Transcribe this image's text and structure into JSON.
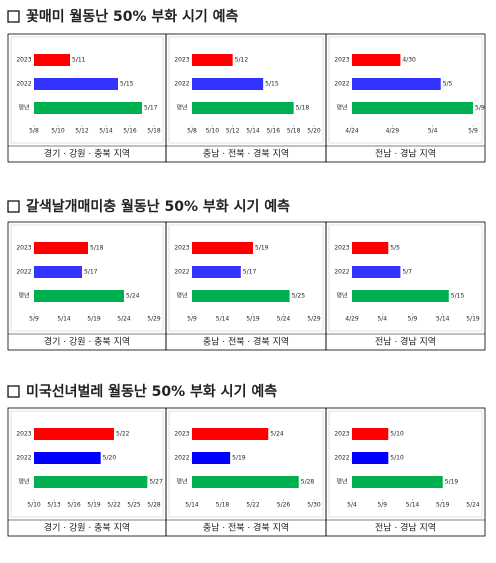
{
  "section_titles": [
    "꽃매미 월동난 50% 부화 시기 예측",
    "갈색날개매미충 월동난 50% 부화 시기 예측",
    "미국선녀벌레 월동난 50% 부화 시기 예측"
  ],
  "chart_data": [
    {
      "type": "barh",
      "xlabel": "경기 · 강원 · 충북 지역",
      "categories": [
        "2023",
        "2022",
        "평년"
      ],
      "values": [
        "5/11",
        "5/15",
        "5/17"
      ],
      "colors": [
        "#ff0000",
        "#3333ff",
        "#00b050"
      ],
      "xlim": [
        "5/8",
        "5/18"
      ],
      "xticks": [
        "5/8",
        "5/10",
        "5/12",
        "5/14",
        "5/16",
        "5/18"
      ]
    },
    {
      "type": "barh",
      "xlabel": "충남 · 전북 · 경북 지역",
      "categories": [
        "2023",
        "2022",
        "평년"
      ],
      "values": [
        "5/12",
        "5/15",
        "5/18"
      ],
      "colors": [
        "#ff0000",
        "#3333ff",
        "#00b050"
      ],
      "xlim": [
        "5/8",
        "5/20"
      ],
      "xticks": [
        "5/8",
        "5/10",
        "5/12",
        "5/14",
        "5/16",
        "5/18",
        "5/20"
      ]
    },
    {
      "type": "barh",
      "xlabel": "전남 · 경남 지역",
      "categories": [
        "2023",
        "2022",
        "평년"
      ],
      "values": [
        "4/30",
        "5/5",
        "5/9"
      ],
      "colors": [
        "#ff0000",
        "#3333ff",
        "#00b050"
      ],
      "xlim": [
        "4/24",
        "5/9"
      ],
      "xticks": [
        "4/24",
        "4/29",
        "5/4",
        "5/9"
      ]
    },
    {
      "type": "barh",
      "xlabel": "경기 · 강원 · 충북 지역",
      "categories": [
        "2023",
        "2022",
        "평년"
      ],
      "values": [
        "5/18",
        "5/17",
        "5/24"
      ],
      "colors": [
        "#ff0000",
        "#3333ff",
        "#00b050"
      ],
      "xlim": [
        "5/9",
        "5/29"
      ],
      "xticks": [
        "5/9",
        "5/14",
        "5/19",
        "5/24",
        "5/29"
      ]
    },
    {
      "type": "barh",
      "xlabel": "충남 · 전북 · 경북 지역",
      "categories": [
        "2023",
        "2022",
        "평년"
      ],
      "values": [
        "5/19",
        "5/17",
        "5/25"
      ],
      "colors": [
        "#ff0000",
        "#3333ff",
        "#00b050"
      ],
      "xlim": [
        "5/9",
        "5/29"
      ],
      "xticks": [
        "5/9",
        "5/14",
        "5/19",
        "5/24",
        "5/29"
      ]
    },
    {
      "type": "barh",
      "xlabel": "전남 · 경남 지역",
      "categories": [
        "2023",
        "2022",
        "평년"
      ],
      "values": [
        "5/5",
        "5/7",
        "5/15"
      ],
      "colors": [
        "#ff0000",
        "#3333ff",
        "#00b050"
      ],
      "xlim": [
        "4/29",
        "5/19"
      ],
      "xticks": [
        "4/29",
        "5/4",
        "5/9",
        "5/14",
        "5/19"
      ]
    },
    {
      "type": "barh",
      "xlabel": "경기 · 강원 · 충북 지역",
      "categories": [
        "2023",
        "2022",
        "평년"
      ],
      "values": [
        "5/22",
        "5/20",
        "5/27"
      ],
      "colors": [
        "#ff0000",
        "#0000ff",
        "#00b050"
      ],
      "xlim": [
        "5/10",
        "5/28"
      ],
      "xticks": [
        "5/10",
        "5/13",
        "5/16",
        "5/19",
        "5/22",
        "5/25",
        "5/28"
      ]
    },
    {
      "type": "barh",
      "xlabel": "충남 · 전북 · 경북 지역",
      "categories": [
        "2023",
        "2022",
        "평년"
      ],
      "values": [
        "5/24",
        "5/19",
        "5/28"
      ],
      "colors": [
        "#ff0000",
        "#0000ff",
        "#00b050"
      ],
      "xlim": [
        "5/14",
        "5/30"
      ],
      "xticks": [
        "5/14",
        "5/18",
        "5/22",
        "5/26",
        "5/30"
      ]
    },
    {
      "type": "barh",
      "xlabel": "전남 · 경남 지역",
      "categories": [
        "2023",
        "2022",
        "평년"
      ],
      "values": [
        "5/10",
        "5/10",
        "5/19"
      ],
      "colors": [
        "#ff0000",
        "#0000ff",
        "#00b050"
      ],
      "xlim": [
        "5/4",
        "5/24"
      ],
      "xticks": [
        "5/4",
        "5/9",
        "5/14",
        "5/19",
        "5/24"
      ]
    }
  ]
}
